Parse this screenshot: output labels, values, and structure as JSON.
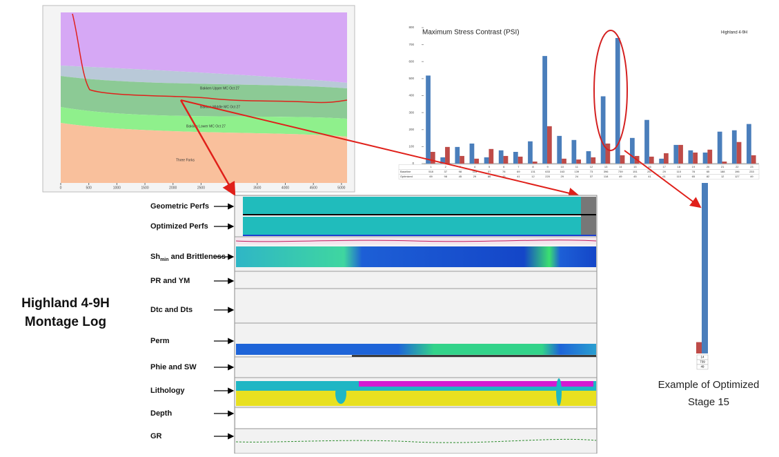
{
  "chart_data": {
    "type": "bar",
    "title": "Maximum Stress Contrast (PSI)",
    "subtitle": "Highland 4-9H",
    "categories": [
      "1",
      "2",
      "3",
      "4",
      "5",
      "6",
      "7",
      "8",
      "9",
      "10",
      "11",
      "12",
      "13",
      "14",
      "15",
      "16",
      "17",
      "18",
      "19",
      "20",
      "21",
      "22",
      "23"
    ],
    "series": [
      {
        "name": "Baseline",
        "color": "#4a7ebb",
        "values": [
          518,
          37,
          98,
          118,
          37,
          78,
          69,
          131,
          633,
          163,
          139,
          73,
          396,
          739,
          151,
          257,
          29,
          110,
          78,
          65,
          188,
          196,
          233
        ]
      },
      {
        "name": "Optimized",
        "color": "#be4b48",
        "values": [
          69,
          98,
          45,
          29,
          86,
          45,
          41,
          12,
          220,
          29,
          24,
          37,
          118,
          49,
          45,
          41,
          61,
          110,
          65,
          82,
          12,
          127,
          49
        ]
      }
    ],
    "ylim": [
      0,
      800
    ],
    "yticks": [
      0,
      100,
      200,
      300,
      400,
      500,
      600,
      700,
      800
    ],
    "grid": false,
    "highlight_index": 13
  },
  "slide": {
    "title_lines": [
      "Highland 4-9H",
      "Montage Log"
    ],
    "caption_lines": [
      "Example of Optimized",
      "Stage 15"
    ]
  },
  "cross_section": {
    "xlim": [
      0,
      5100
    ],
    "xticks": [
      0,
      500,
      1000,
      1500,
      2000,
      2500,
      3000,
      3500,
      4000,
      4500,
      5000
    ],
    "layers": [
      "Bakken Upper MC Oct 27",
      "Bakken Middle MC Oct 27",
      "Bakken Lower MC Oct 27",
      "Three Forks"
    ]
  },
  "montage": {
    "tracks": [
      {
        "label": "Geometric Perfs"
      },
      {
        "label": "Optimized Perfs"
      },
      {
        "label": "Sh",
        "subscript": "min",
        "suffix": " and Brittleness"
      },
      {
        "label": "PR and YM"
      },
      {
        "label": "Dtc and Dts"
      },
      {
        "label": "Perm"
      },
      {
        "label": "Phie and SW"
      },
      {
        "label": "Lithology"
      },
      {
        "label": "Depth"
      },
      {
        "label": "GR"
      }
    ]
  }
}
